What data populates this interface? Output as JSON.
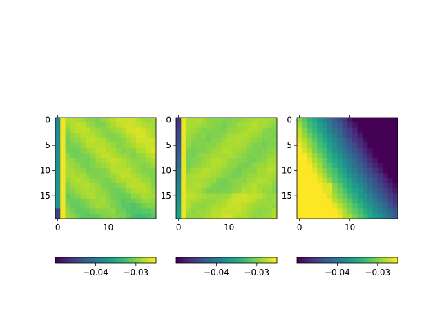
{
  "chart_data": [
    {
      "type": "heatmap",
      "pattern": "left-column-gradient-yellow-bands",
      "rows": 20,
      "cols": 20,
      "xlim": [
        -0.5,
        19.5
      ],
      "ylim": [
        19.5,
        -0.5
      ],
      "x_ticks": [
        0,
        10
      ],
      "y_ticks": [
        0,
        5,
        10,
        15
      ],
      "x_tick_labels": [
        "0",
        "10"
      ],
      "y_tick_labels": [
        "0",
        "5",
        "10",
        "15"
      ],
      "value_range": [
        -0.05,
        -0.035
      ],
      "colorbar": {
        "ticks": [
          -0.04,
          -0.03
        ],
        "tick_labels": [
          "−0.04",
          "−0.03"
        ],
        "range": [
          -0.05,
          -0.025
        ]
      }
    },
    {
      "type": "heatmap",
      "pattern": "flat-green-with-dark-left-edge",
      "rows": 20,
      "cols": 20,
      "xlim": [
        -0.5,
        19.5
      ],
      "ylim": [
        19.5,
        -0.5
      ],
      "x_ticks": [
        0,
        10
      ],
      "y_ticks": [
        0,
        5,
        10,
        15
      ],
      "x_tick_labels": [
        "0",
        "10"
      ],
      "y_tick_labels": [
        "0",
        "5",
        "10",
        "15"
      ],
      "value_range": [
        -0.05,
        -0.025
      ],
      "colorbar": {
        "ticks": [
          -0.04,
          -0.03
        ],
        "tick_labels": [
          "−0.04",
          "−0.03"
        ],
        "range": [
          -0.05,
          -0.025
        ]
      }
    },
    {
      "type": "heatmap",
      "pattern": "yellow-bottom-left-to-purple-right",
      "rows": 20,
      "cols": 20,
      "xlim": [
        -0.5,
        19.5
      ],
      "ylim": [
        19.5,
        -0.5
      ],
      "x_ticks": [
        0,
        10
      ],
      "y_ticks": [
        0,
        5,
        10,
        15
      ],
      "x_tick_labels": [
        "0",
        "10"
      ],
      "y_tick_labels": [
        "0",
        "5",
        "10",
        "15"
      ],
      "value_range": [
        -0.05,
        -0.025
      ],
      "colorbar": {
        "ticks": [
          -0.04,
          -0.03
        ],
        "tick_labels": [
          "−0.04",
          "−0.03"
        ],
        "range": [
          -0.05,
          -0.025
        ]
      }
    }
  ],
  "colormap": "viridis"
}
